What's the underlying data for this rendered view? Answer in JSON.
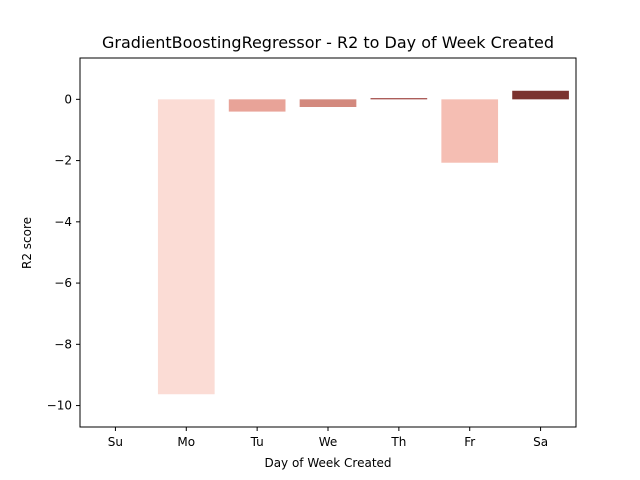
{
  "chart_data": {
    "type": "bar",
    "title": "GradientBoostingRegressor - R2 to Day of Week Created",
    "xlabel": "Day of Week Created",
    "ylabel": "R2 score",
    "categories": [
      "Su",
      "Mo",
      "Tu",
      "We",
      "Th",
      "Fr",
      "Sa"
    ],
    "values": [
      0,
      -9.63,
      -0.4,
      -0.25,
      0.04,
      -2.07,
      0.28
    ],
    "colors": [
      "#ffffff",
      "#fbdcd5",
      "#e8a398",
      "#d3897e",
      "#a14a45",
      "#f5beb3",
      "#7b332f"
    ],
    "ylim": [
      -10.7,
      1.35
    ],
    "yticks": [
      0,
      -2,
      -4,
      -6,
      -8,
      -10
    ],
    "ytick_labels": [
      "0",
      "−2",
      "−4",
      "−6",
      "−8",
      "−10"
    ],
    "grid": false,
    "legend": "none"
  }
}
